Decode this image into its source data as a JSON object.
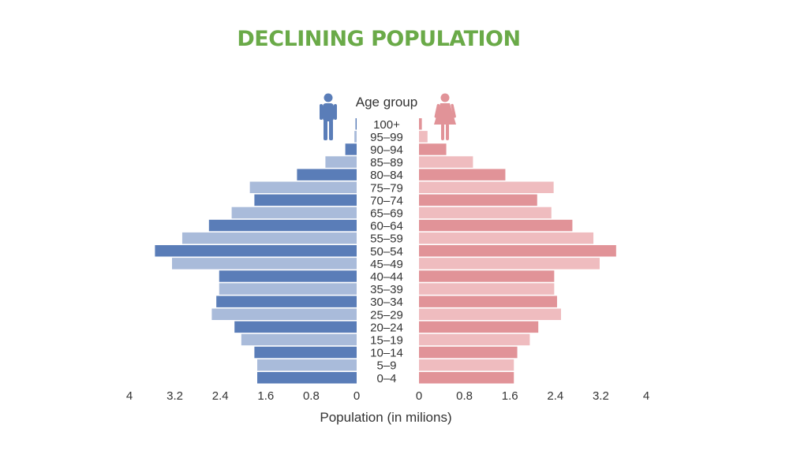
{
  "title": "DECLINING POPULATION",
  "colors": {
    "title": "#6aaa48",
    "male_dark": "#5a7db8",
    "male_light": "#a9bbda",
    "female_dark": "#e19398",
    "female_light": "#efbcbf",
    "text": "#333333"
  },
  "icons": {
    "male": "male-person-icon",
    "female": "female-person-icon"
  },
  "chart_data": {
    "type": "bar",
    "orientation": "horizontal",
    "subtype": "population-pyramid",
    "category_header": "Age group",
    "categories": [
      "100+",
      "95–99",
      "90–94",
      "85–89",
      "80–84",
      "75–79",
      "70–74",
      "65–69",
      "60–64",
      "55–59",
      "50–54",
      "45–49",
      "40–44",
      "35–39",
      "30–34",
      "25–29",
      "20–24",
      "15–19",
      "10–14",
      "5–9",
      "0–4"
    ],
    "series": [
      {
        "side": "left",
        "values": [
          0.02,
          0.04,
          0.2,
          0.55,
          1.05,
          1.88,
          1.8,
          2.2,
          2.6,
          3.07,
          3.55,
          3.25,
          2.42,
          2.42,
          2.47,
          2.55,
          2.15,
          2.03,
          1.8,
          1.75,
          1.75
        ]
      },
      {
        "side": "right",
        "values": [
          0.05,
          0.15,
          0.48,
          0.95,
          1.52,
          2.37,
          2.08,
          2.33,
          2.7,
          3.07,
          3.47,
          3.18,
          2.38,
          2.38,
          2.43,
          2.5,
          2.1,
          1.95,
          1.73,
          1.67,
          1.67
        ]
      }
    ],
    "left_ticks": [
      "4",
      "3.2",
      "2.4",
      "1.6",
      "0.8",
      "0"
    ],
    "right_ticks": [
      "0",
      "0.8",
      "1.6",
      "2.4",
      "3.2",
      "4"
    ],
    "xlim": [
      0,
      4
    ],
    "xlabel": "Population (in milions)",
    "grid": false,
    "legend": "none"
  }
}
